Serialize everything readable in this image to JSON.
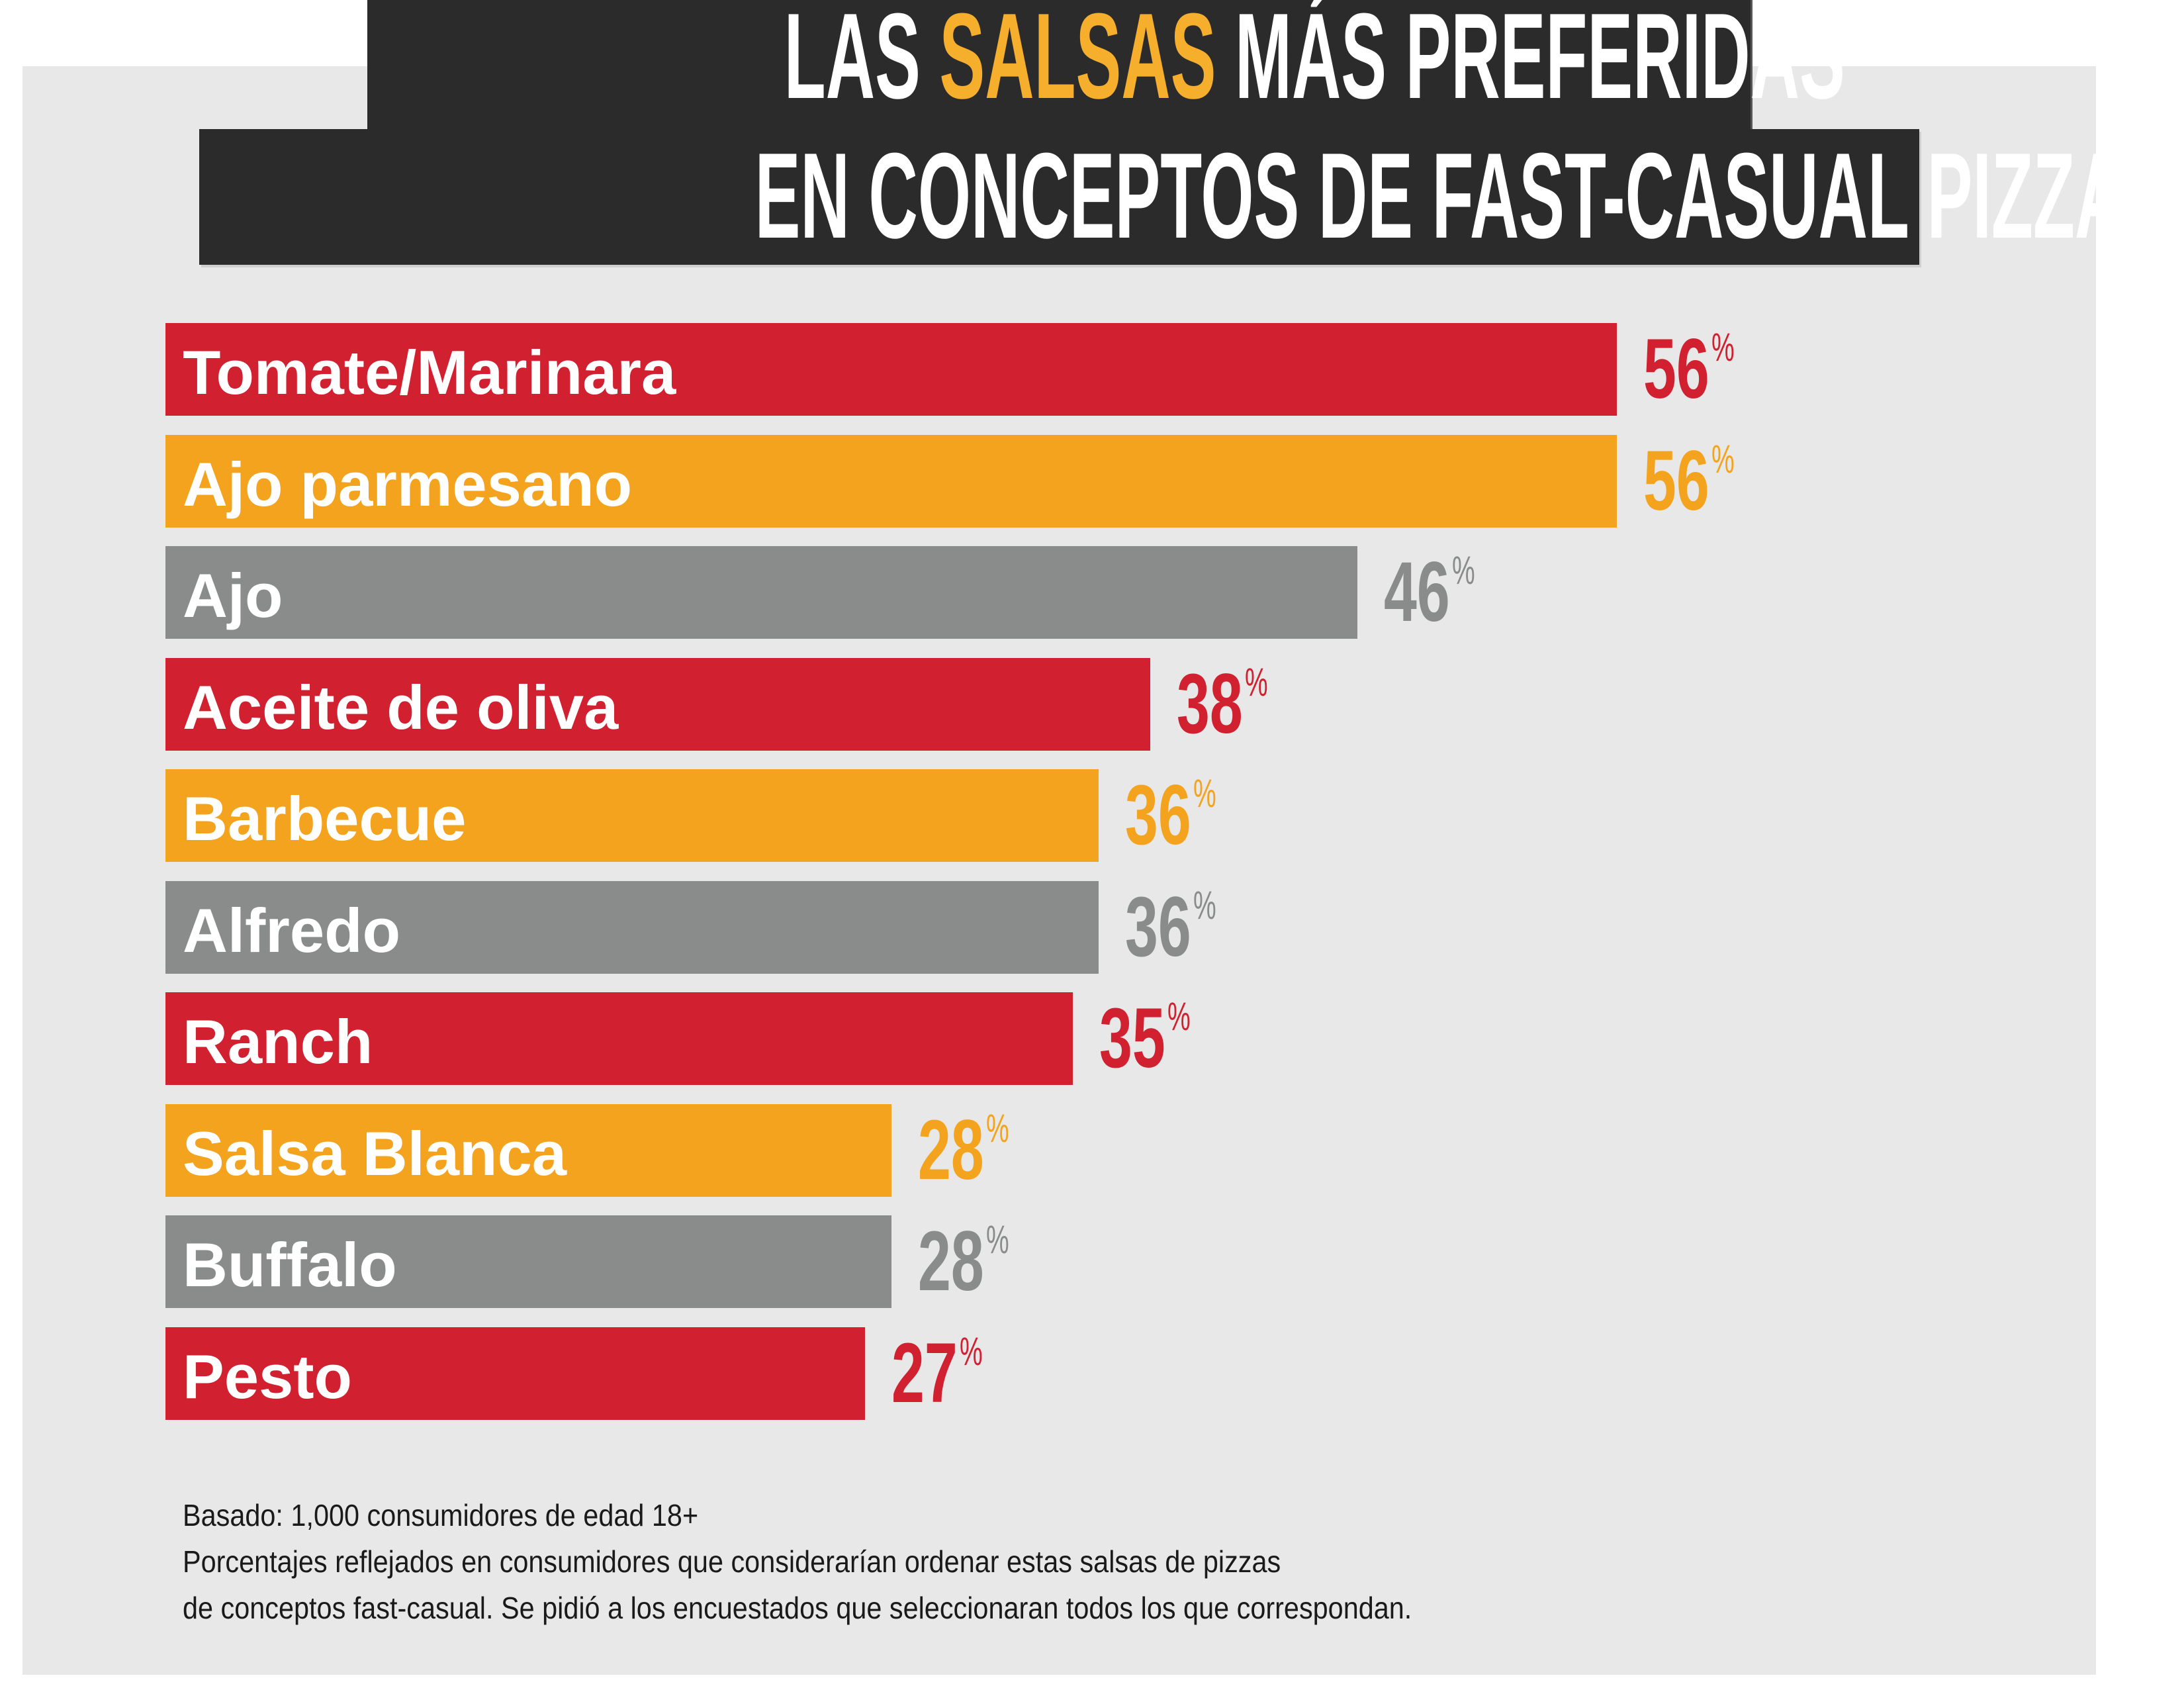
{
  "title": {
    "line1_prefix": "LAS ",
    "line1_highlight": "SALSAS",
    "line1_suffix": " MÁS PREFERIDAS",
    "line2": "EN CONCEPTOS DE FAST-CASUAL PIZZAS",
    "highlight_color": "#f6ae2d"
  },
  "colors": {
    "red": "#d12131",
    "orange": "#f3a31d",
    "gray": "#8a8c8c",
    "panel": "#e8e8e8",
    "title_box": "#2c2b2c"
  },
  "chart_data": {
    "type": "bar",
    "orientation": "horizontal",
    "title": "LAS SALSAS MÁS PREFERIDAS EN CONCEPTOS DE FAST-CASUAL PIZZAS",
    "categories": [
      "Tomate/Marinara",
      "Ajo parmesano",
      "Ajo",
      "Aceite de oliva",
      "Barbecue",
      "Alfredo",
      "Ranch",
      "Salsa Blanca",
      "Buffalo",
      "Pesto"
    ],
    "values": [
      56,
      56,
      46,
      38,
      36,
      36,
      35,
      28,
      28,
      27
    ],
    "value_labels": [
      "56",
      "56",
      "46",
      "38",
      "36",
      "36",
      "35",
      "28",
      "28",
      "27"
    ],
    "unit_label": "%",
    "bar_colors": [
      "red",
      "orange",
      "gray",
      "red",
      "orange",
      "gray",
      "red",
      "orange",
      "gray",
      "red"
    ],
    "xlim": [
      0,
      56
    ],
    "xlabel": "",
    "ylabel": "",
    "grid": false,
    "legend": "none"
  },
  "footnote": {
    "line1": "Basado: 1,000 consumidores de edad 18+",
    "line2": "Porcentajes reflejados en consumidores que considerarían ordenar estas salsas de pizzas",
    "line3": "de conceptos fast-casual. Se pidió a los encuestados que seleccionaran todos los que correspondan."
  }
}
